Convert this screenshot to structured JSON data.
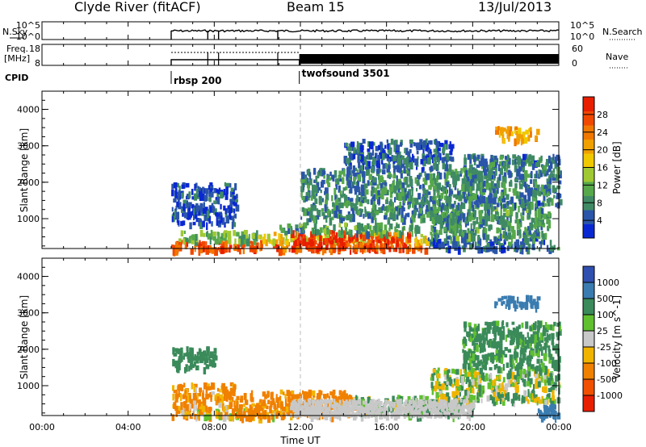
{
  "header": {
    "site": "Clyde River (fitACF)",
    "beam": "Beam 15",
    "date": "13/Jul/2013"
  },
  "nsky_panel": {
    "left_label": "N.Sky",
    "left_ticks": [
      "10^5",
      "10^0"
    ],
    "right_label": "N.Search",
    "right_ticks": [
      "10^5",
      "10^0"
    ]
  },
  "freq_panel": {
    "left_label_line1": "Freq.",
    "left_label_line2": "[MHz]",
    "left_ticks": [
      "18",
      "8"
    ],
    "right_label": "Nave",
    "right_ticks": [
      "60",
      "0"
    ]
  },
  "cpid": {
    "label": "CPID",
    "modes": [
      {
        "name": "rbsp 200",
        "start_hour": 6.0
      },
      {
        "name": "twofsound 3501",
        "start_hour": 11.95
      }
    ]
  },
  "x_axis": {
    "label": "Time UT",
    "ticks": [
      "00:00",
      "04:00",
      "08:00",
      "12:00",
      "16:00",
      "20:00",
      "00:00"
    ],
    "range_hours": [
      0,
      24
    ]
  },
  "colors": {
    "frame": "#000000",
    "dashed_marker": "#bbbbbb",
    "ground_scatter": "#c8c8c8"
  },
  "chart_data": [
    {
      "type": "heatmap",
      "panel": "power",
      "ylabel": "Slant Range [km]",
      "y_ticks": [
        "1000",
        "2000",
        "3000",
        "4000"
      ],
      "ylim": [
        180,
        4500
      ],
      "colorbar_label": "Power [dB]",
      "colorbar_ticks": [
        "4",
        "8",
        "12",
        "16",
        "20",
        "24",
        "28"
      ],
      "colorbar_range": [
        0,
        32
      ],
      "colorscale": [
        "#0a28d2",
        "#2a55a8",
        "#3f8a64",
        "#56a84a",
        "#a0c832",
        "#f0c800",
        "#f0a000",
        "#f07800",
        "#f04800",
        "#e81e00"
      ],
      "data_start_hour": 6.0,
      "regions": [
        {
          "t": [
            6.0,
            17.9
          ],
          "r": [
            180,
            420
          ],
          "value": 26
        },
        {
          "t": [
            10.0,
            17.9
          ],
          "r": [
            420,
            650
          ],
          "value": 18
        },
        {
          "t": [
            11.5,
            14.0
          ],
          "r": [
            200,
            700
          ],
          "value": 30
        },
        {
          "t": [
            14.0,
            17.0
          ],
          "r": [
            200,
            650
          ],
          "value": 28
        },
        {
          "t": [
            6.3,
            10.0
          ],
          "r": [
            420,
            700
          ],
          "value": 12
        },
        {
          "t": [
            11.0,
            17.5
          ],
          "r": [
            650,
            900
          ],
          "value": 10
        },
        {
          "t": [
            17.9,
            24.0
          ],
          "r": [
            200,
            500
          ],
          "value": 6
        },
        {
          "t": [
            18.0,
            23.5
          ],
          "r": [
            500,
            1400
          ],
          "value": 9
        },
        {
          "t": [
            19.5,
            24.0
          ],
          "r": [
            1400,
            2800
          ],
          "value": 7
        },
        {
          "t": [
            21.0,
            23.0
          ],
          "r": [
            3200,
            3550
          ],
          "value": 20
        },
        {
          "t": [
            6.0,
            9.0
          ],
          "r": [
            900,
            2000
          ],
          "value": 4
        },
        {
          "t": [
            12.0,
            20.0
          ],
          "r": [
            1000,
            2400
          ],
          "value": 8
        },
        {
          "t": [
            14.0,
            19.0
          ],
          "r": [
            2400,
            3200
          ],
          "value": 5
        }
      ]
    },
    {
      "type": "heatmap",
      "panel": "velocity",
      "ylabel": "Slant Range [km]",
      "y_ticks": [
        "1000",
        "2000",
        "3000",
        "4000"
      ],
      "ylim": [
        180,
        4500
      ],
      "colorbar_label": "Velocity [m s^-1]",
      "colorbar_ticks": [
        "1000",
        "500",
        "100",
        "25",
        "-25",
        "-100",
        "-500",
        "-1000"
      ],
      "colorscale_top_to_bottom": [
        "#3050b0",
        "#3a7cb0",
        "#3a8a5a",
        "#60c030",
        "#c8c8c8",
        "#f0b400",
        "#f08000",
        "#f05000",
        "#e81e00"
      ],
      "data_start_hour": 6.0,
      "regions": [
        {
          "t": [
            6.0,
            11.5
          ],
          "r": [
            180,
            420
          ],
          "value": -60
        },
        {
          "t": [
            6.0,
            9.0
          ],
          "r": [
            420,
            1100
          ],
          "value": -150
        },
        {
          "t": [
            9.0,
            14.5
          ],
          "r": [
            180,
            900
          ],
          "value": -200
        },
        {
          "t": [
            12.0,
            16.5
          ],
          "r": [
            180,
            450
          ],
          "value": 0
        },
        {
          "t": [
            14.5,
            18.0
          ],
          "r": [
            300,
            750
          ],
          "value": 80
        },
        {
          "t": [
            17.0,
            20.0
          ],
          "r": [
            200,
            600
          ],
          "value": 150
        },
        {
          "t": [
            18.0,
            24.0
          ],
          "r": [
            600,
            1500
          ],
          "value": 60
        },
        {
          "t": [
            19.5,
            24.0
          ],
          "r": [
            1500,
            2800
          ],
          "value": 200
        },
        {
          "t": [
            21.0,
            23.0
          ],
          "r": [
            3200,
            3500
          ],
          "value": 700
        },
        {
          "t": [
            6.0,
            8.0
          ],
          "r": [
            1500,
            2100
          ],
          "value": 300
        },
        {
          "t": [
            23.0,
            24.0
          ],
          "r": [
            180,
            500
          ],
          "value": 800
        }
      ]
    }
  ]
}
